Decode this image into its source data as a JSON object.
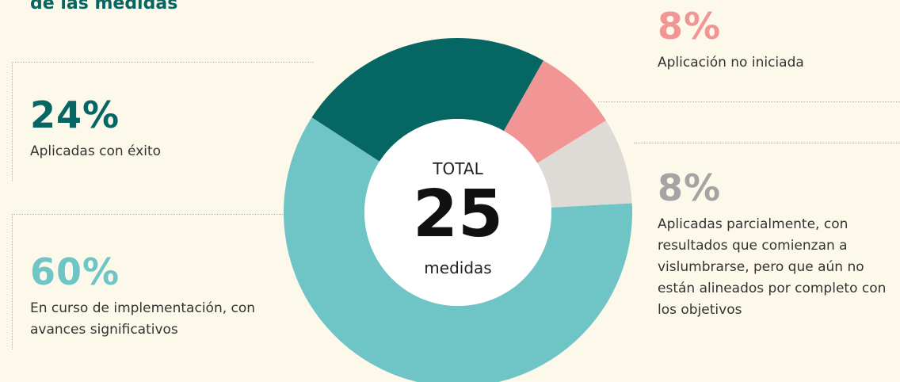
{
  "chart_data": {
    "type": "donut",
    "title": "de las medidas",
    "values": [
      24,
      8,
      8,
      60
    ],
    "value_labels": [
      "24%",
      "8%",
      "8%",
      "60%"
    ],
    "labels": [
      "Aplicadas con éxito",
      "Aplicación no iniciada",
      "Aplicadas parcialmente, con resultados que comienzan a vislumbrarse, pero que aún no están alineados por completo con los objetivos",
      "En curso de implementación, con avances significativos"
    ],
    "colors": [
      "#056664",
      "#f29595",
      "#dedad5",
      "#6fc4c6"
    ],
    "label_colors": [
      "#056664",
      "#f29595",
      "#a4a4a4",
      "#6fc4c6"
    ],
    "center_top": "TOTAL",
    "center_value": 25,
    "center_bottom": "medidas"
  }
}
